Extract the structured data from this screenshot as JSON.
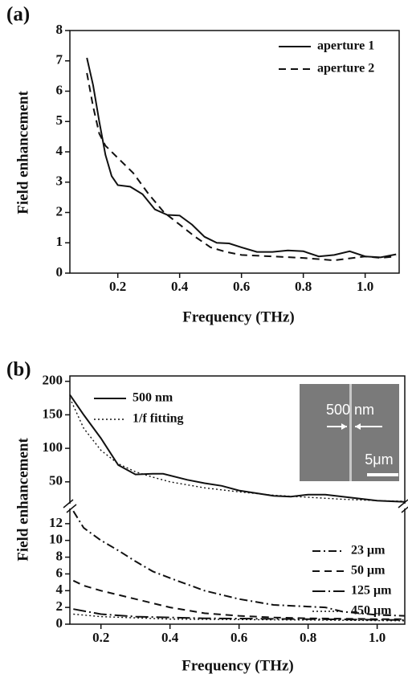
{
  "chart_data": [
    {
      "type": "line",
      "label": "(a)",
      "xlabel": "Frequency (THz)",
      "ylabel": "Field enhancement",
      "xlim": [
        0.045,
        1.11
      ],
      "xticks": [
        0.2,
        0.4,
        0.6,
        0.8,
        {
          "value": 1,
          "label": "1.0"
        }
      ],
      "ylim": [
        0,
        8
      ],
      "yticks": [
        0,
        1,
        2,
        3,
        4,
        5,
        6,
        7,
        8
      ],
      "legend": "upper right",
      "series": [
        {
          "name": "aperture 1",
          "dash": "solid",
          "color": "#111111",
          "x": [
            0.1,
            0.12,
            0.14,
            0.16,
            0.18,
            0.2,
            0.24,
            0.28,
            0.32,
            0.36,
            0.4,
            0.44,
            0.48,
            0.52,
            0.56,
            0.6,
            0.65,
            0.7,
            0.75,
            0.8,
            0.85,
            0.9,
            0.95,
            1.0,
            1.05,
            1.1
          ],
          "values": [
            7.1,
            6.2,
            5.0,
            3.9,
            3.2,
            2.9,
            2.85,
            2.6,
            2.1,
            1.92,
            1.9,
            1.6,
            1.2,
            1.0,
            0.98,
            0.85,
            0.7,
            0.7,
            0.75,
            0.72,
            0.55,
            0.6,
            0.72,
            0.55,
            0.52,
            0.62
          ]
        },
        {
          "name": "aperture 2",
          "dash": "dashed",
          "color": "#111111",
          "x": [
            0.1,
            0.12,
            0.14,
            0.16,
            0.2,
            0.25,
            0.3,
            0.35,
            0.4,
            0.45,
            0.5,
            0.55,
            0.6,
            0.7,
            0.8,
            0.9,
            1.0,
            1.05,
            1.1
          ],
          "values": [
            6.6,
            5.5,
            4.6,
            4.2,
            3.8,
            3.3,
            2.6,
            2.0,
            1.6,
            1.2,
            0.85,
            0.7,
            0.6,
            0.55,
            0.5,
            0.42,
            0.55,
            0.5,
            0.55
          ]
        }
      ]
    },
    {
      "type": "line",
      "label": "(b)",
      "xlabel": "Frequency (THz)",
      "ylabel": "Field enhancement",
      "xlim": [
        0.11,
        1.08
      ],
      "xticks": [
        0.2,
        0.4,
        0.6,
        0.8,
        {
          "value": 1,
          "label": "1.0"
        }
      ],
      "inset": {
        "label": "500 nm",
        "scale": "5μm"
      },
      "panels": [
        {
          "ylim": [
            15,
            208
          ],
          "yticks": [
            50,
            100,
            150,
            200
          ],
          "legend": "upper left",
          "series": [
            {
              "name": "500 nm",
              "dash": "solid",
              "color": "#111111",
              "x": [
                0.11,
                0.15,
                0.2,
                0.25,
                0.3,
                0.35,
                0.38,
                0.45,
                0.5,
                0.55,
                0.6,
                0.7,
                0.75,
                0.8,
                0.85,
                0.9,
                1.0,
                1.08
              ],
              "values": [
                180,
                150,
                115,
                75,
                61,
                62,
                62,
                53,
                48,
                44,
                37,
                29,
                28,
                31,
                31,
                28,
                22,
                20
              ]
            },
            {
              "name": "1/f fitting",
              "dash": "dotted",
              "color": "#111111",
              "x": [
                0.11,
                0.15,
                0.2,
                0.25,
                0.3,
                0.35,
                0.4,
                0.5,
                0.6,
                0.7,
                0.8,
                0.9,
                1.0,
                1.08
              ],
              "values": [
                175,
                130,
                97,
                77,
                65,
                57,
                50,
                41,
                35,
                30,
                27,
                24,
                22,
                21
              ]
            }
          ]
        },
        {
          "ylim": [
            0,
            14
          ],
          "yticks": [
            0,
            2,
            4,
            6,
            8,
            10,
            12
          ],
          "legend": "lower right",
          "series": [
            {
              "name": "23 μm",
              "dash": "dashdot",
              "color": "#111111",
              "x": [
                0.12,
                0.15,
                0.2,
                0.25,
                0.3,
                0.35,
                0.4,
                0.5,
                0.6,
                0.7,
                0.8,
                0.85,
                0.9,
                1.0,
                1.08
              ],
              "values": [
                13.5,
                11.5,
                10.0,
                8.8,
                7.5,
                6.3,
                5.5,
                4.0,
                3.0,
                2.3,
                2.1,
                2.0,
                1.5,
                1.1,
                1.0
              ]
            },
            {
              "name": "50 μm",
              "dash": "dashed",
              "color": "#111111",
              "x": [
                0.12,
                0.15,
                0.2,
                0.3,
                0.4,
                0.5,
                0.6,
                0.7,
                0.8,
                1.0,
                1.08
              ],
              "values": [
                5.2,
                4.6,
                4.0,
                3.0,
                2.0,
                1.3,
                1.0,
                0.8,
                0.7,
                0.6,
                0.6
              ]
            },
            {
              "name": "125 μm",
              "dash": "dashdotlong",
              "color": "#111111",
              "x": [
                0.12,
                0.2,
                0.3,
                0.5,
                0.8,
                1.08
              ],
              "values": [
                1.8,
                1.2,
                0.9,
                0.7,
                0.6,
                0.5
              ]
            },
            {
              "name": "450 μm",
              "dash": "dotted",
              "color": "#111111",
              "x": [
                0.12,
                0.2,
                0.4,
                0.8,
                1.08
              ],
              "values": [
                1.2,
                0.9,
                0.6,
                0.5,
                0.4
              ]
            }
          ]
        }
      ]
    }
  ]
}
